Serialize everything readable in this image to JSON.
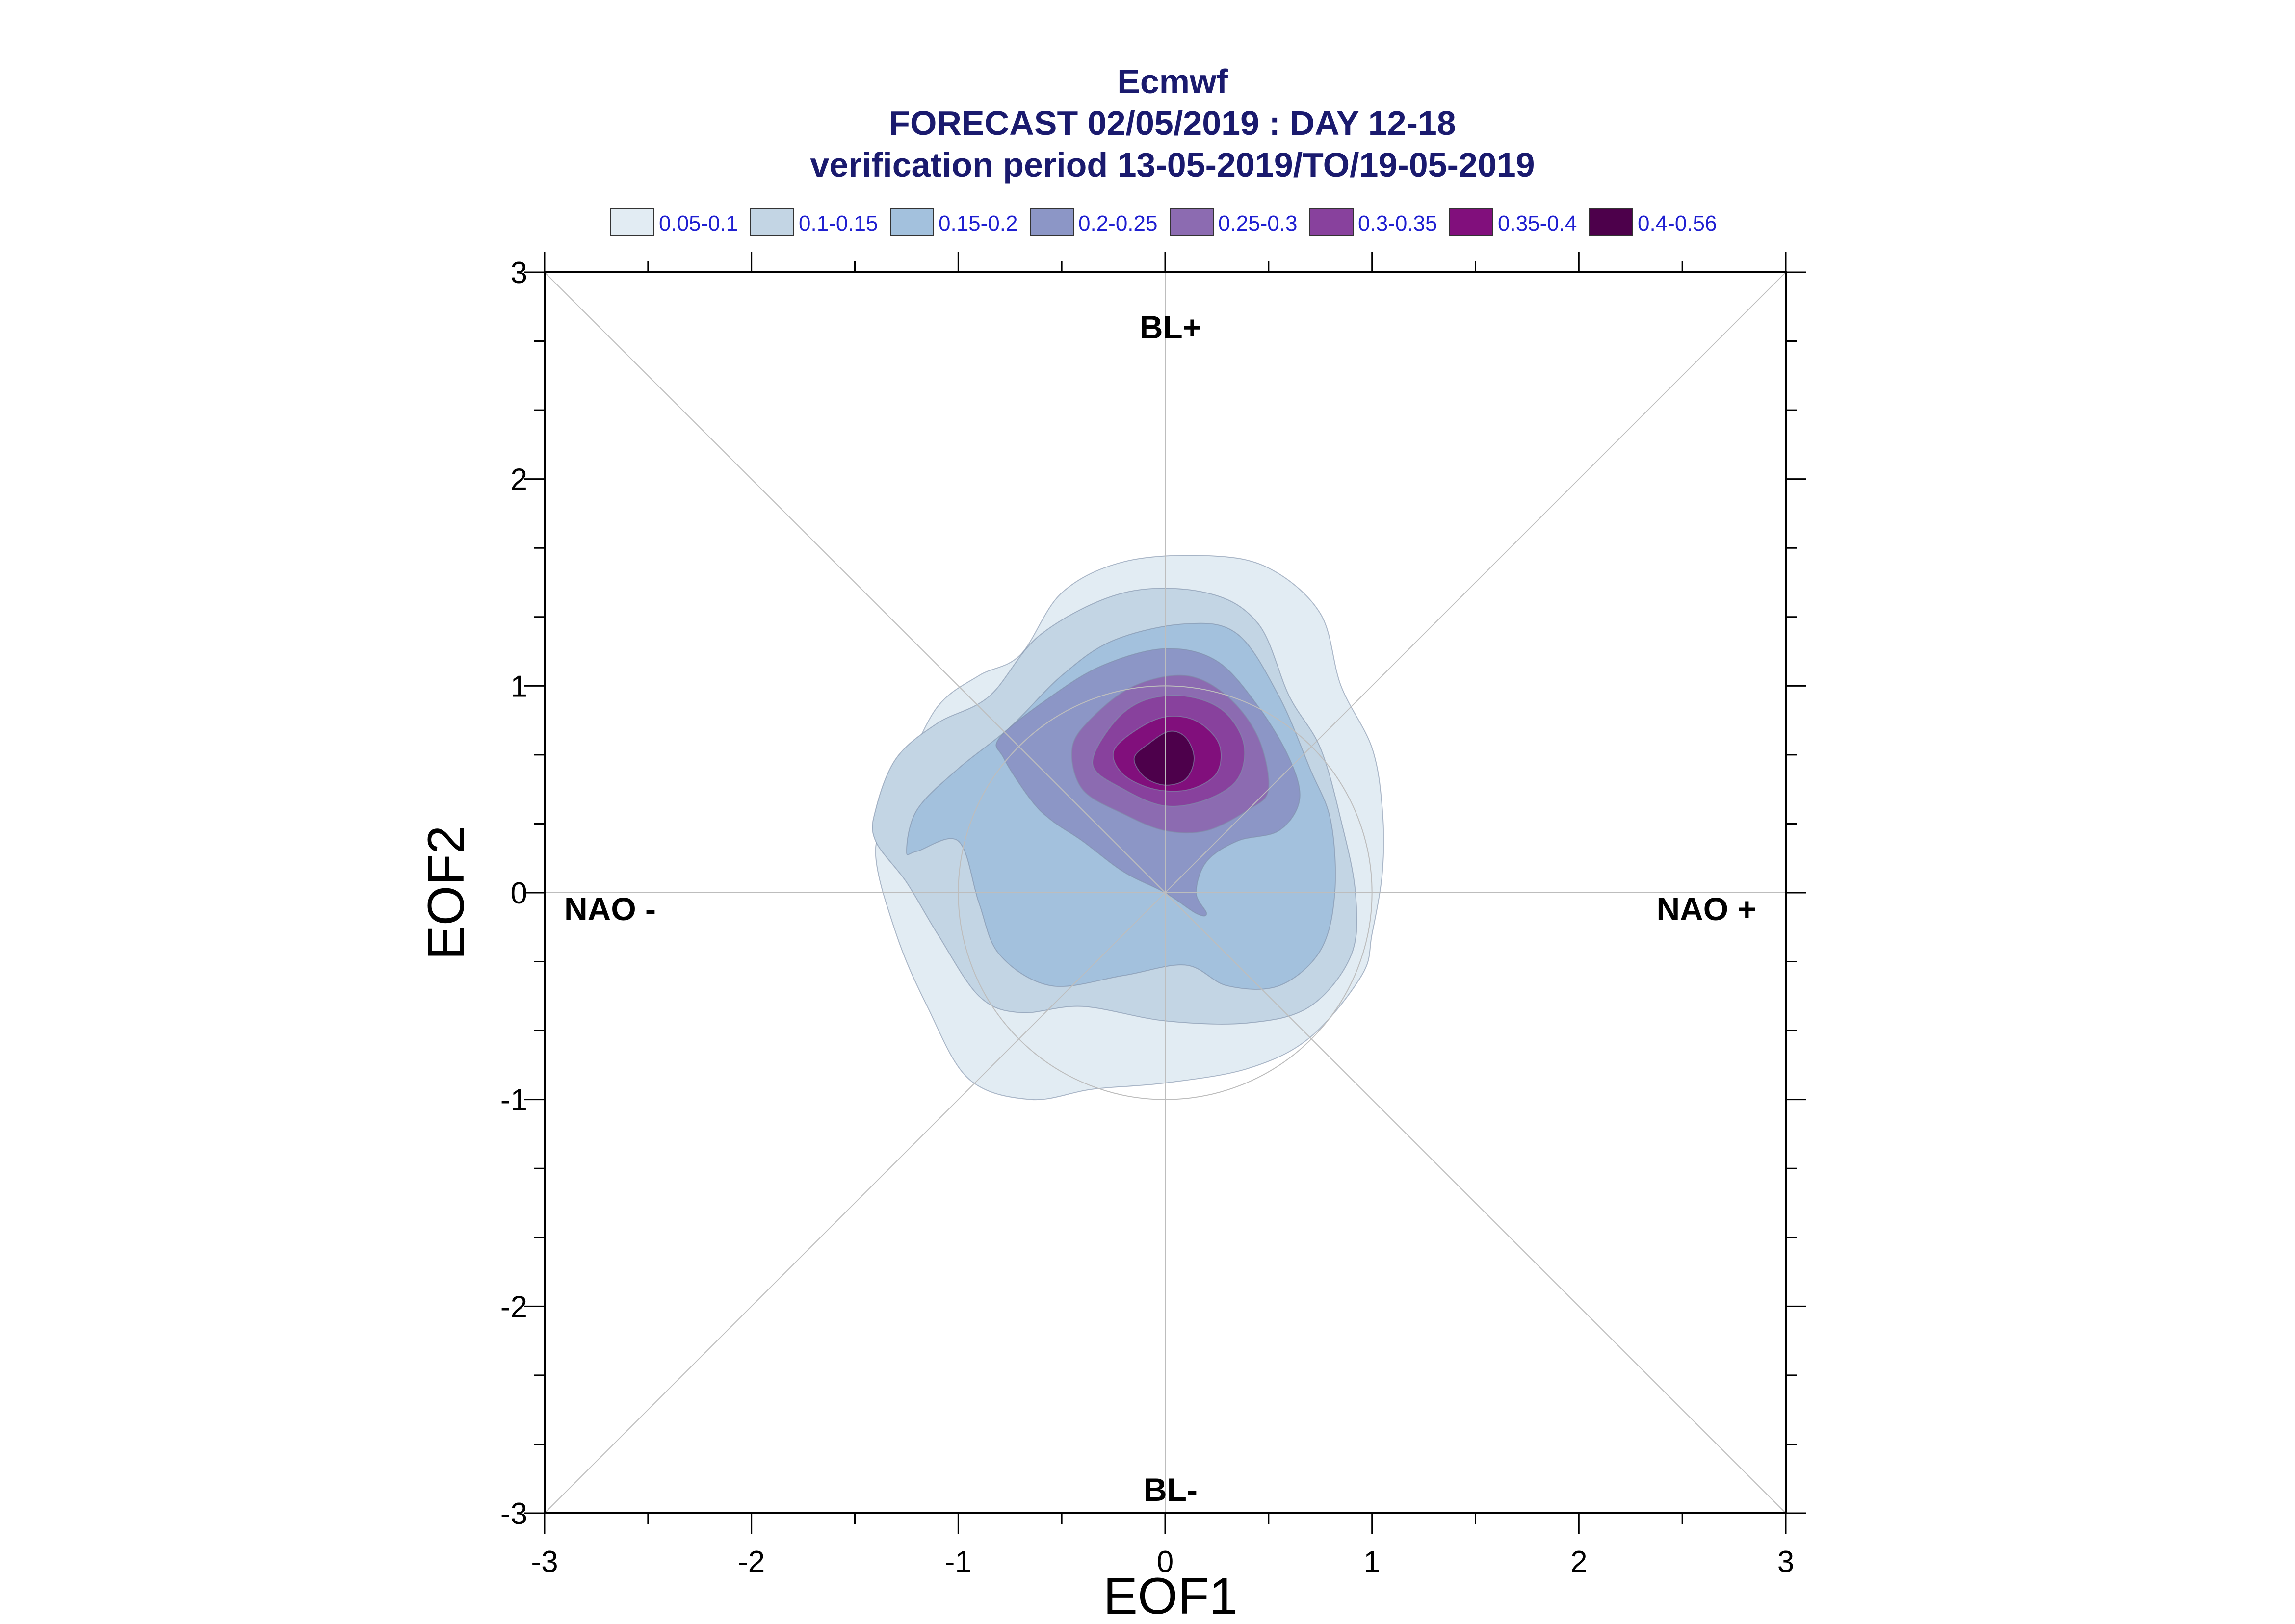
{
  "chart_data": {
    "type": "contour",
    "title": "Ecmwf",
    "subtitle_1": "FORECAST 02/05/2019 : DAY 12-18",
    "subtitle_2": "verification period 13-05-2019/TO/19-05-2019",
    "xlabel": "EOF1",
    "ylabel": "EOF2",
    "xlim": [
      -3,
      3
    ],
    "ylim": [
      -3,
      3
    ],
    "x_ticks": [
      "-3",
      "-2",
      "-1",
      "0",
      "1",
      "2",
      "3"
    ],
    "y_ticks": [
      "-3",
      "-2",
      "-1",
      "0",
      "1",
      "2",
      "3"
    ],
    "grid": false,
    "legend_position": "top",
    "legend": [
      {
        "label": "0.05-0.1",
        "color": "#e2ecf3"
      },
      {
        "label": "0.1-0.15",
        "color": "#c3d5e4"
      },
      {
        "label": "0.15-0.2",
        "color": "#a3c1dd"
      },
      {
        "label": "0.2-0.25",
        "color": "#8c96c6"
      },
      {
        "label": "0.25-0.3",
        "color": "#8c6bb1"
      },
      {
        "label": "0.3-0.35",
        "color": "#88419d"
      },
      {
        "label": "0.35-0.4",
        "color": "#810f7c"
      },
      {
        "label": "0.4-0.56",
        "color": "#4d004b"
      }
    ],
    "regime_labels": {
      "top": "BL+",
      "bottom": "BL-",
      "left": "NAO -",
      "right": "NAO +"
    },
    "reference_circle_radius": 1,
    "density_contours": [
      {
        "level": "0.05-0.1",
        "points": [
          [
            -1.3,
            0.45
          ],
          [
            -1.25,
            0.6
          ],
          [
            -1.1,
            0.9
          ],
          [
            -0.9,
            1.05
          ],
          [
            -0.7,
            1.15
          ],
          [
            -0.5,
            1.45
          ],
          [
            -0.2,
            1.6
          ],
          [
            0.2,
            1.63
          ],
          [
            0.5,
            1.57
          ],
          [
            0.75,
            1.35
          ],
          [
            0.85,
            1.0
          ],
          [
            1.0,
            0.7
          ],
          [
            1.05,
            0.4
          ],
          [
            1.05,
            0.1
          ],
          [
            1.0,
            -0.2
          ],
          [
            0.95,
            -0.4
          ],
          [
            0.7,
            -0.7
          ],
          [
            0.4,
            -0.85
          ],
          [
            0.0,
            -0.92
          ],
          [
            -0.35,
            -0.95
          ],
          [
            -0.65,
            -1.0
          ],
          [
            -0.95,
            -0.9
          ],
          [
            -1.15,
            -0.55
          ],
          [
            -1.3,
            -0.2
          ],
          [
            -1.4,
            0.2
          ]
        ]
      },
      {
        "level": "0.1-0.15",
        "points": [
          [
            -1.4,
            0.4
          ],
          [
            -1.3,
            0.65
          ],
          [
            -1.1,
            0.82
          ],
          [
            -0.85,
            0.95
          ],
          [
            -0.6,
            1.25
          ],
          [
            -0.2,
            1.45
          ],
          [
            0.2,
            1.45
          ],
          [
            0.45,
            1.3
          ],
          [
            0.6,
            0.95
          ],
          [
            0.75,
            0.7
          ],
          [
            0.85,
            0.35
          ],
          [
            0.92,
            0.0
          ],
          [
            0.9,
            -0.3
          ],
          [
            0.7,
            -0.55
          ],
          [
            0.4,
            -0.63
          ],
          [
            0.0,
            -0.62
          ],
          [
            -0.4,
            -0.55
          ],
          [
            -0.7,
            -0.58
          ],
          [
            -0.9,
            -0.5
          ],
          [
            -1.1,
            -0.2
          ],
          [
            -1.25,
            0.05
          ],
          [
            -1.4,
            0.25
          ]
        ]
      },
      {
        "level": "0.15-0.2",
        "points": [
          [
            -1.25,
            0.2
          ],
          [
            -1.2,
            0.4
          ],
          [
            -1.0,
            0.6
          ],
          [
            -0.75,
            0.8
          ],
          [
            -0.5,
            1.05
          ],
          [
            -0.25,
            1.22
          ],
          [
            0.1,
            1.3
          ],
          [
            0.35,
            1.25
          ],
          [
            0.55,
            0.95
          ],
          [
            0.7,
            0.6
          ],
          [
            0.8,
            0.35
          ],
          [
            0.82,
            0.0
          ],
          [
            0.75,
            -0.28
          ],
          [
            0.55,
            -0.45
          ],
          [
            0.3,
            -0.45
          ],
          [
            0.1,
            -0.35
          ],
          [
            -0.2,
            -0.4
          ],
          [
            -0.55,
            -0.45
          ],
          [
            -0.8,
            -0.3
          ],
          [
            -0.9,
            -0.05
          ],
          [
            -1.0,
            0.25
          ],
          [
            -1.2,
            0.2
          ]
        ]
      },
      {
        "level": "0.2-0.25",
        "points": [
          [
            -0.8,
            0.75
          ],
          [
            -0.55,
            0.95
          ],
          [
            -0.3,
            1.1
          ],
          [
            0.0,
            1.18
          ],
          [
            0.25,
            1.12
          ],
          [
            0.45,
            0.9
          ],
          [
            0.6,
            0.65
          ],
          [
            0.65,
            0.45
          ],
          [
            0.55,
            0.3
          ],
          [
            0.35,
            0.25
          ],
          [
            0.2,
            0.15
          ],
          [
            0.15,
            0.0
          ],
          [
            0.2,
            -0.1
          ],
          [
            0.15,
            -0.1
          ],
          [
            0.0,
            0.0
          ],
          [
            -0.2,
            0.1
          ],
          [
            -0.4,
            0.25
          ],
          [
            -0.55,
            0.35
          ],
          [
            -0.65,
            0.45
          ],
          [
            -0.78,
            0.65
          ]
        ]
      },
      {
        "level": "0.25-0.3",
        "points": [
          [
            -0.35,
            0.85
          ],
          [
            -0.15,
            1.0
          ],
          [
            0.1,
            1.05
          ],
          [
            0.3,
            0.95
          ],
          [
            0.45,
            0.75
          ],
          [
            0.5,
            0.5
          ],
          [
            0.4,
            0.4
          ],
          [
            0.2,
            0.3
          ],
          [
            0.0,
            0.3
          ],
          [
            -0.2,
            0.38
          ],
          [
            -0.4,
            0.5
          ],
          [
            -0.45,
            0.7
          ]
        ]
      },
      {
        "level": "0.3-0.35",
        "points": [
          [
            -0.25,
            0.82
          ],
          [
            -0.1,
            0.93
          ],
          [
            0.1,
            0.95
          ],
          [
            0.28,
            0.88
          ],
          [
            0.38,
            0.72
          ],
          [
            0.35,
            0.55
          ],
          [
            0.2,
            0.45
          ],
          [
            0.0,
            0.42
          ],
          [
            -0.2,
            0.5
          ],
          [
            -0.35,
            0.62
          ]
        ]
      },
      {
        "level": "0.35-0.4",
        "points": [
          [
            -0.15,
            0.78
          ],
          [
            0.0,
            0.85
          ],
          [
            0.15,
            0.83
          ],
          [
            0.26,
            0.72
          ],
          [
            0.25,
            0.58
          ],
          [
            0.12,
            0.5
          ],
          [
            -0.05,
            0.5
          ],
          [
            -0.2,
            0.57
          ],
          [
            -0.25,
            0.68
          ]
        ]
      },
      {
        "level": "0.4-0.56",
        "points": [
          [
            -0.08,
            0.72
          ],
          [
            0.02,
            0.78
          ],
          [
            0.1,
            0.75
          ],
          [
            0.14,
            0.65
          ],
          [
            0.1,
            0.55
          ],
          [
            0.0,
            0.52
          ],
          [
            -0.1,
            0.56
          ],
          [
            -0.15,
            0.65
          ]
        ]
      }
    ]
  }
}
